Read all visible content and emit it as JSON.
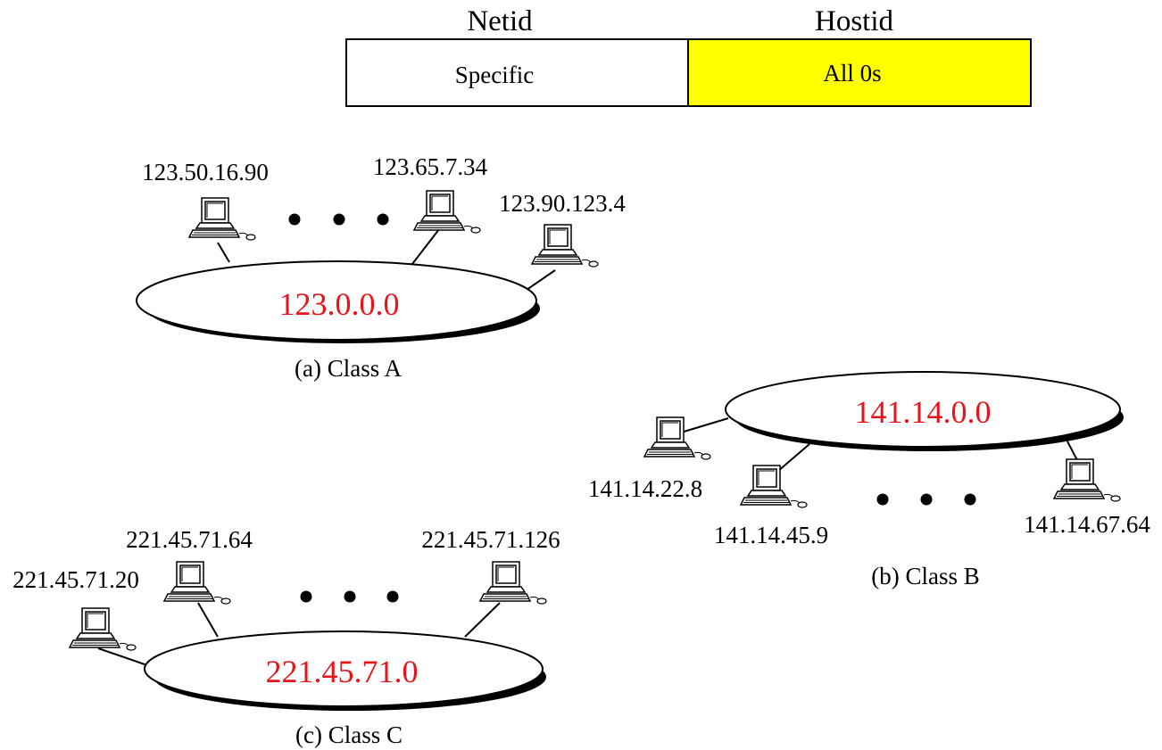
{
  "header": {
    "netid_label": "Netid",
    "hostid_label": "Hostid",
    "netid_cell": "Specific",
    "hostid_cell": "All 0s",
    "hostid_cell_color": "#ffff00"
  },
  "network_color": "#e8141b",
  "class_a": {
    "network": "123.0.0.0",
    "caption": "(a) Class A",
    "hosts": [
      "123.50.16.90",
      "123.65.7.34",
      "123.90.123.4"
    ]
  },
  "class_b": {
    "network": "141.14.0.0",
    "caption": "(b) Class B",
    "hosts": [
      "141.14.22.8",
      "141.14.45.9",
      "141.14.67.64"
    ]
  },
  "class_c": {
    "network": "221.45.71.0",
    "caption": "(c) Class C",
    "hosts": [
      "221.45.71.20",
      "221.45.71.64",
      "221.45.71.126"
    ]
  },
  "icons": [
    "computer-icon",
    "ellipsis-dots"
  ]
}
